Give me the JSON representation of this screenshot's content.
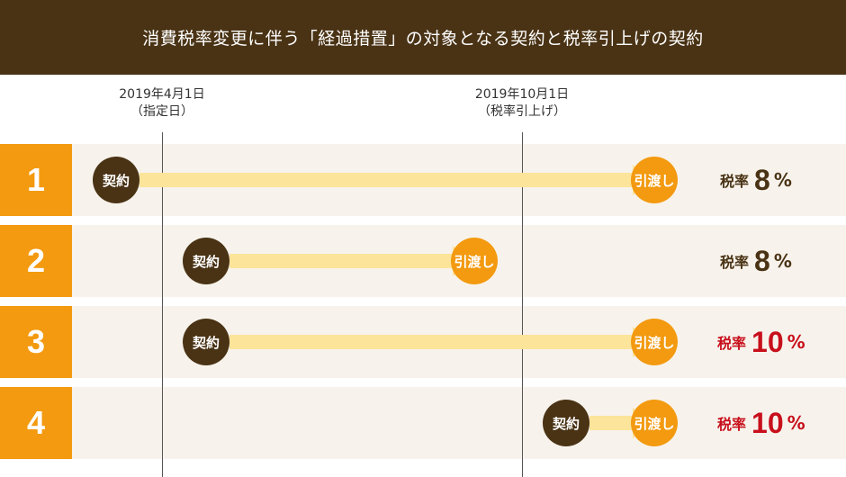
{
  "header": {
    "title": "消費税率変更に伴う「経過措置」の対象となる契約と税率引上げの契約"
  },
  "dates": [
    {
      "date": "2019年4月1日",
      "note": "（指定日）"
    },
    {
      "date": "2019年10月1日",
      "note": "（税率引上げ）"
    }
  ],
  "rows": [
    {
      "number": "1",
      "contract": "契約",
      "delivery": "引渡し",
      "rate_label": "税率",
      "rate_value": "8",
      "rate_unit": "%",
      "rate_color": "#4a3315"
    },
    {
      "number": "2",
      "contract": "契約",
      "delivery": "引渡し",
      "rate_label": "税率",
      "rate_value": "8",
      "rate_unit": "%",
      "rate_color": "#4a3315"
    },
    {
      "number": "3",
      "contract": "契約",
      "delivery": "引渡し",
      "rate_label": "税率",
      "rate_value": "10",
      "rate_unit": "%",
      "rate_color": "#c8101c"
    },
    {
      "number": "4",
      "contract": "契約",
      "delivery": "引渡し",
      "rate_label": "税率",
      "rate_value": "10",
      "rate_unit": "%",
      "rate_color": "#c8101c"
    }
  ],
  "colors": {
    "header_bg": "#4a3315",
    "number_bg": "#f39a10",
    "arrow": "#fce49a",
    "contract_circle": "#4a3315",
    "delivery_circle": "#f39a10",
    "row_bg": "#f7f3ec"
  }
}
